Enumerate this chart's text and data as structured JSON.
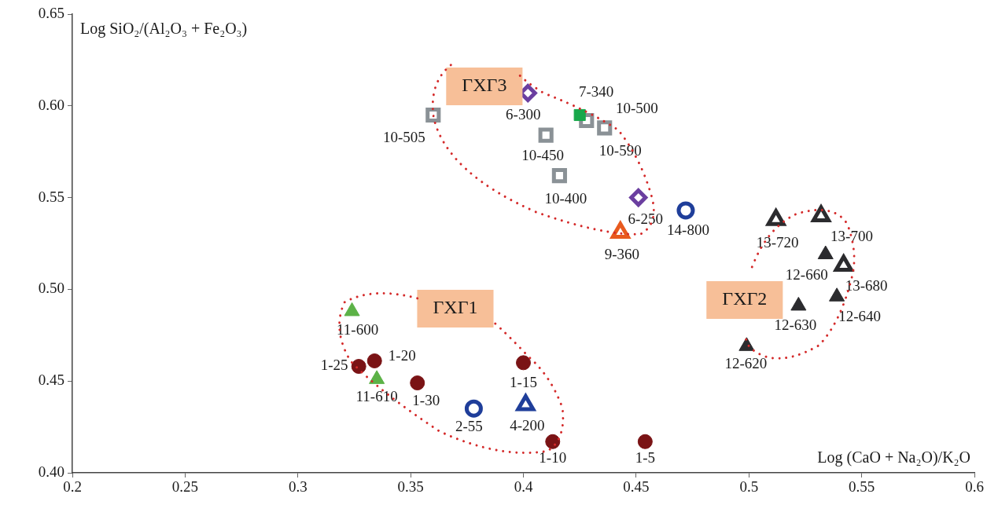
{
  "chart_data": {
    "type": "scatter",
    "xlabel": "Log (CaO + Na₂O)/K₂O",
    "ylabel": "Log SiO₂/(Al₂O₃ + Fe₂O₃)",
    "xlim": [
      0.2,
      0.6
    ],
    "xticks": [
      0.2,
      0.25,
      0.3,
      0.35,
      0.4,
      0.45,
      0.5,
      0.55,
      0.6
    ],
    "ylim": [
      0.4,
      0.65
    ],
    "yticks": [
      {
        "value": 0.4,
        "label": "0.40"
      },
      {
        "value": 0.45,
        "label": "0.45"
      },
      {
        "value": 0.5,
        "label": "0.50"
      },
      {
        "value": 0.55,
        "label": "0.55"
      },
      {
        "value": 0.6,
        "label": "0.60"
      },
      {
        "value": 0.65,
        "label": "0.65"
      }
    ],
    "grid": false,
    "legend": false,
    "series": [
      {
        "color": "#7a1315",
        "marker": "circle",
        "x": [
          0.454,
          0.413,
          0.4,
          0.334,
          0.327,
          0.353
        ],
        "values": [
          0.417,
          0.417,
          0.46,
          0.461,
          0.458,
          0.449
        ],
        "value_labels": [
          "1-5",
          "1-10",
          "1-15",
          "1-20",
          "1-25",
          "1-30"
        ]
      },
      {
        "color": "#5cb247",
        "marker": "triangle",
        "x": [
          0.324,
          0.335
        ],
        "values": [
          0.488,
          0.451
        ],
        "value_labels": [
          "11-600",
          "11-610"
        ]
      },
      {
        "color": "#1f3e9a",
        "marker": "circle",
        "x": [
          0.378,
          0.472
        ],
        "values": [
          0.435,
          0.543
        ],
        "value_labels": [
          "2-55",
          "14-800"
        ]
      },
      {
        "color": "#1f3e9a",
        "marker": "triangle",
        "x": [
          0.401
        ],
        "values": [
          0.437
        ],
        "value_labels": [
          "4-200"
        ]
      },
      {
        "color": "#17a84b",
        "marker": "square",
        "x": [
          0.425
        ],
        "values": [
          0.595
        ],
        "value_labels": [
          "7-340"
        ]
      },
      {
        "color": "#8a9196",
        "marker": "square",
        "x": [
          0.36,
          0.428,
          0.436,
          0.41,
          0.416
        ],
        "values": [
          0.595,
          0.592,
          0.588,
          0.584,
          0.562
        ],
        "value_labels": [
          "10-505",
          "10-500",
          "10-590",
          "10-450",
          "10-400"
        ]
      },
      {
        "color": "#6b3fa0",
        "marker": "diamond",
        "x": [
          0.402,
          0.451
        ],
        "values": [
          0.607,
          0.55
        ],
        "value_labels": [
          "6-300",
          "6-250"
        ]
      },
      {
        "color": "#e85a1e",
        "marker": "triangle",
        "x": [
          0.443
        ],
        "values": [
          0.531
        ],
        "value_labels": [
          "9-360"
        ]
      },
      {
        "color": "#2b2b2e",
        "marker": "triangle",
        "x": [
          0.512,
          0.532,
          0.542
        ],
        "values": [
          0.538,
          0.54,
          0.513
        ],
        "value_labels": [
          "13-720",
          "13-700",
          "13-680"
        ]
      },
      {
        "color": "#2b2b2e",
        "marker": "triangle",
        "x": [
          0.534,
          0.539,
          0.522,
          0.499
        ],
        "values": [
          0.519,
          0.496,
          0.491,
          0.469
        ],
        "value_labels": [
          "12-660",
          "12-640",
          "12-630",
          "12-620"
        ]
      }
    ],
    "annotations": [
      "ГХГ3",
      "ГХГ1",
      "ГХГ2"
    ]
  }
}
